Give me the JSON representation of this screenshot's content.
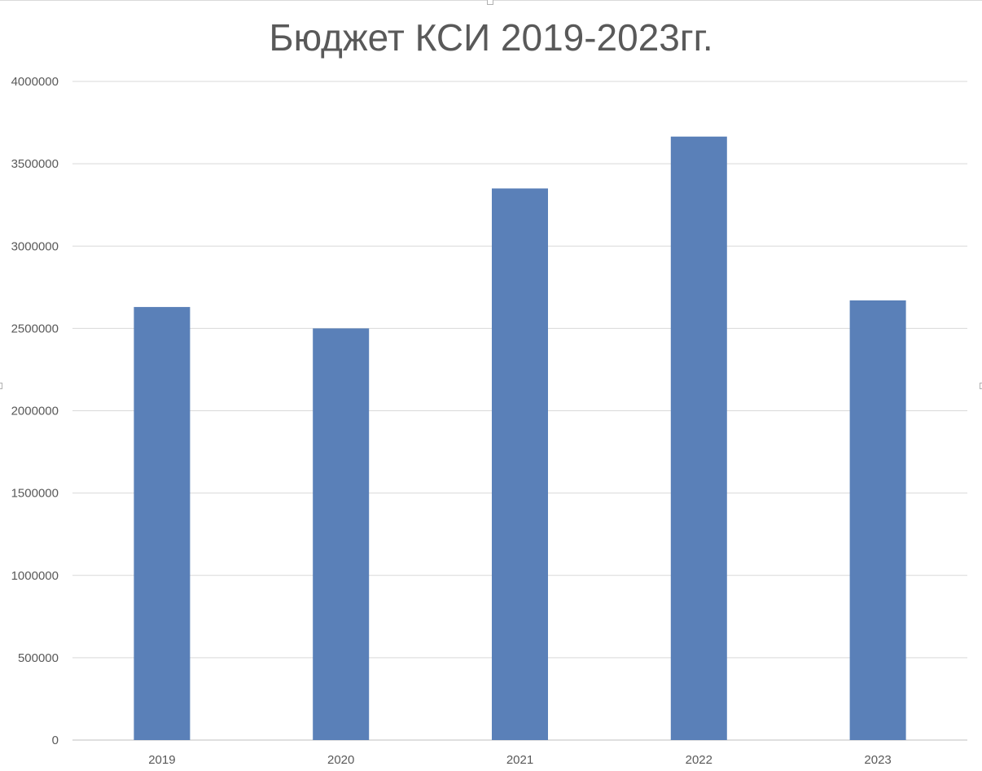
{
  "chart_data": {
    "type": "bar",
    "title": "Бюджет КСИ 2019-2023гг.",
    "categories": [
      "2019",
      "2020",
      "2021",
      "2022",
      "2023"
    ],
    "values": [
      2630000,
      2500000,
      3350000,
      3665000,
      2670000
    ],
    "yticks": [
      "0",
      "500000",
      "1000000",
      "1500000",
      "2000000",
      "2500000",
      "3000000",
      "3500000",
      "4000000"
    ],
    "ylim": [
      0,
      4000000
    ],
    "xlabel": "",
    "ylabel": "",
    "grid": true,
    "legend": "none",
    "bar_color": "#5a80b8",
    "grid_color": "#d9d9d9",
    "text_color": "#595959"
  }
}
